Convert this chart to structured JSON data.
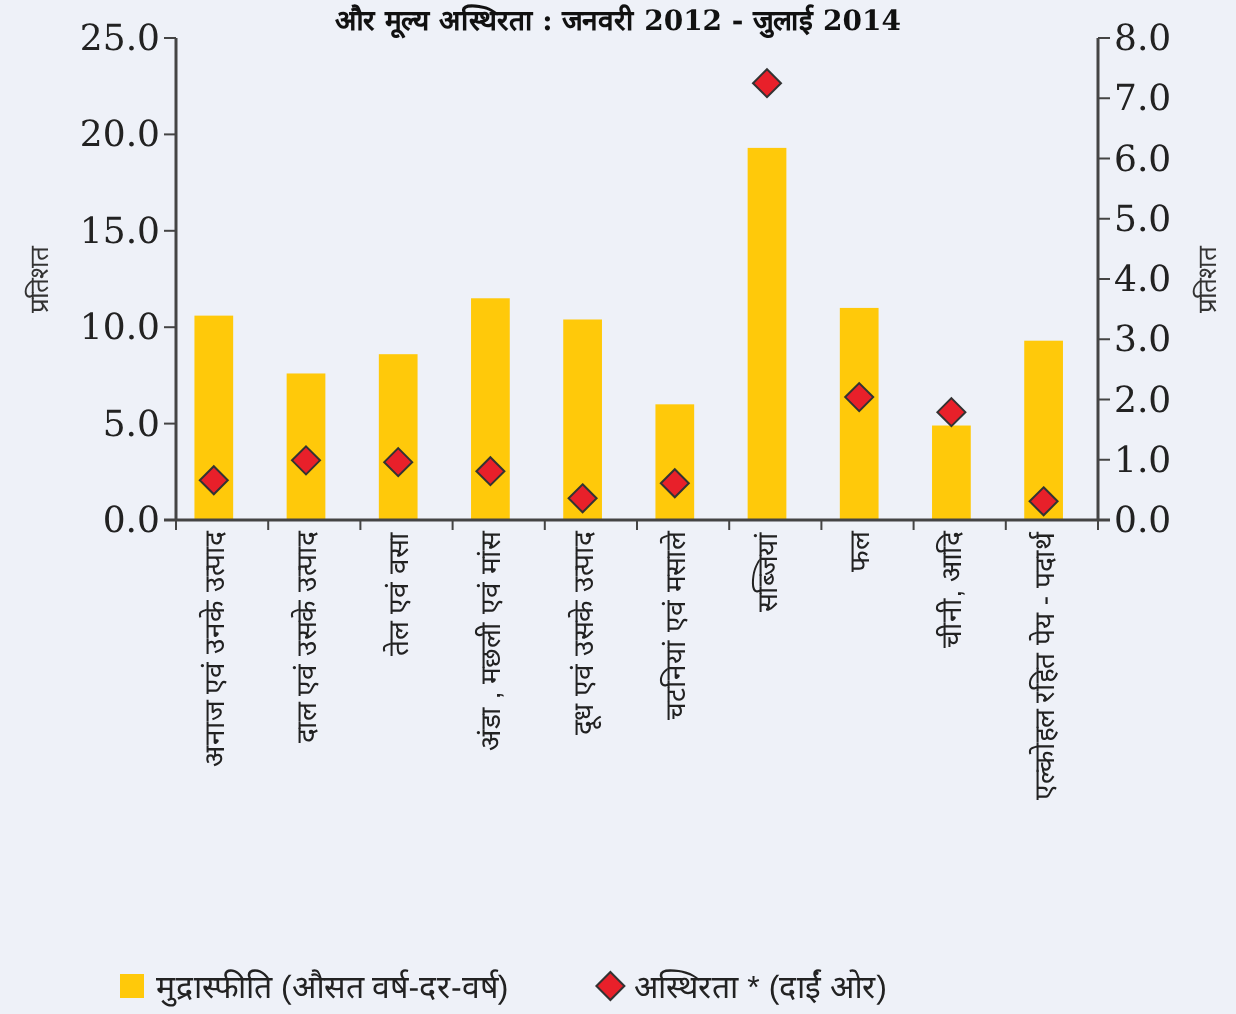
{
  "chart_data": {
    "type": "bar",
    "title": "और मूल्य अस्थिरता : जनवरी 2012 - जुलाई 2014",
    "categories": [
      "अनाज एवं उनके उत्पाद",
      "दाल एवं उसके उत्पाद",
      "तेल एवं वसा",
      "अंडा , मछली एवं मांस",
      "दूध एवं उसके उत्पाद",
      "चटनियां एवं मसाले",
      "सब्जियां",
      "फल",
      "चीनी, आदि",
      "एल्कोहल रहित पेय - पदार्थ"
    ],
    "series": [
      {
        "name": "मुद्रास्फीति (औसत वर्ष-दर-वर्ष)",
        "color": "#ffc90a",
        "values": [
          10.6,
          7.6,
          8.6,
          11.5,
          10.4,
          6.0,
          19.3,
          11.0,
          4.9,
          9.3
        ]
      },
      {
        "name": "अस्थिरता * (दाईं ओर)",
        "type": "scatter",
        "axis": "y2",
        "marker": "diamond",
        "color": "#e8202a",
        "values": [
          0.66,
          0.99,
          0.96,
          0.81,
          0.36,
          0.61,
          7.25,
          2.04,
          1.79,
          0.31
        ]
      }
    ],
    "ylabel": "प्रतिशत",
    "y2label": "प्रतिशत",
    "ylim": [
      0,
      25
    ],
    "yticks": [
      {
        "value": 0,
        "label": "0.0"
      },
      {
        "value": 5,
        "label": "5.0"
      },
      {
        "value": 10,
        "label": "10.0"
      },
      {
        "value": 15,
        "label": "15.0"
      },
      {
        "value": 20,
        "label": "20.0"
      },
      {
        "value": 25,
        "label": "25.0"
      }
    ],
    "y2lim": [
      0,
      8
    ],
    "y2ticks": [
      {
        "value": 0,
        "label": "0.0"
      },
      {
        "value": 1,
        "label": "1.0"
      },
      {
        "value": 2,
        "label": "2.0"
      },
      {
        "value": 3,
        "label": "3.0"
      },
      {
        "value": 4,
        "label": "4.0"
      },
      {
        "value": 5,
        "label": "5.0"
      },
      {
        "value": 6,
        "label": "6.0"
      },
      {
        "value": 7,
        "label": "7.0"
      },
      {
        "value": 8,
        "label": "8.0"
      }
    ],
    "grid": false,
    "legend": "bottom"
  }
}
